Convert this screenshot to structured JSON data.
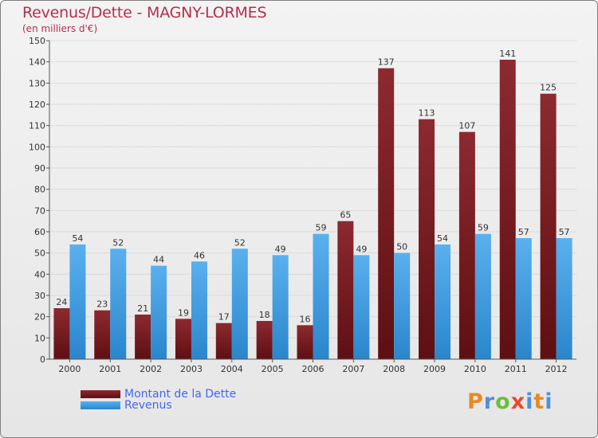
{
  "title": "Revenus/Dette - MAGNY-LORMES",
  "subtitle": "(en milliers d'€)",
  "logo": {
    "text": "Proxiti",
    "colors": [
      "#e88a1f",
      "#4f8fdc",
      "#6cbf3a",
      "#e84a2f",
      "#4f8fdc",
      "#e88a1f",
      "#4f8fdc"
    ]
  },
  "colors": {
    "dette": "#7b1e22",
    "revenus": "#3d9be0",
    "title": "#b5304a",
    "legend_text": "#4466ee"
  },
  "chart_data": {
    "type": "bar",
    "categories": [
      "2000",
      "2001",
      "2002",
      "2003",
      "2004",
      "2005",
      "2006",
      "2007",
      "2008",
      "2009",
      "2010",
      "2011",
      "2012"
    ],
    "series": [
      {
        "name": "Montant de la Dette",
        "values": [
          24,
          23,
          21,
          19,
          17,
          18,
          16,
          65,
          137,
          113,
          107,
          141,
          125
        ],
        "color": "#7b1e22"
      },
      {
        "name": "Revenus",
        "values": [
          54,
          52,
          44,
          46,
          52,
          49,
          59,
          49,
          50,
          54,
          59,
          57,
          57
        ],
        "color": "#3d9be0"
      }
    ],
    "ylim": [
      0,
      150
    ],
    "yticks": [
      0,
      10,
      20,
      30,
      40,
      50,
      60,
      70,
      80,
      90,
      100,
      110,
      120,
      130,
      140,
      150
    ],
    "grid": true,
    "legend": "bottom-left"
  }
}
